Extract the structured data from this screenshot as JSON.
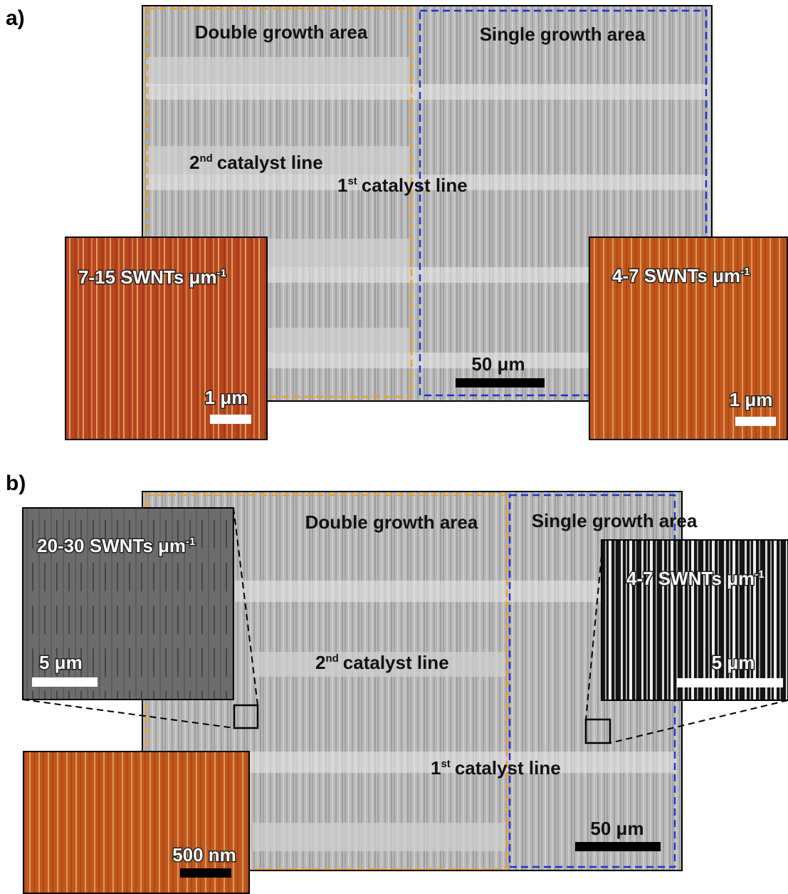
{
  "panel_a": {
    "label": "a)",
    "double_area": "Double growth area",
    "single_area": "Single growth area",
    "catalyst_2": {
      "num": "2",
      "sup": "nd",
      "text": "catalyst line"
    },
    "catalyst_1": {
      "num": "1",
      "sup": "st",
      "text": "catalyst line"
    },
    "scale_bar": "50 μm",
    "inset_left": {
      "density": {
        "text": "7-15 SWNTs μm",
        "sup": "-1"
      },
      "scale_bar": "1 μm"
    },
    "inset_right": {
      "density": {
        "text": "4-7 SWNTs μm",
        "sup": "-1"
      },
      "scale_bar": "1 μm"
    }
  },
  "panel_b": {
    "label": "b)",
    "double_area": "Double growth area",
    "single_area": "Single growth area",
    "catalyst_2": {
      "num": "2",
      "sup": "nd",
      "text": "catalyst line"
    },
    "catalyst_1": {
      "num": "1",
      "sup": "st",
      "text": "catalyst line"
    },
    "scale_bar": "50 μm",
    "inset_left": {
      "density": {
        "text": "20-30 SWNTs μm",
        "sup": "-1"
      },
      "scale_bar": "5 μm"
    },
    "inset_right": {
      "density": {
        "text": "4-7 SWNTs μm",
        "sup": "-1"
      },
      "scale_bar": "5 μm"
    },
    "inset_bottom": {
      "scale_bar": "500 nm"
    }
  }
}
